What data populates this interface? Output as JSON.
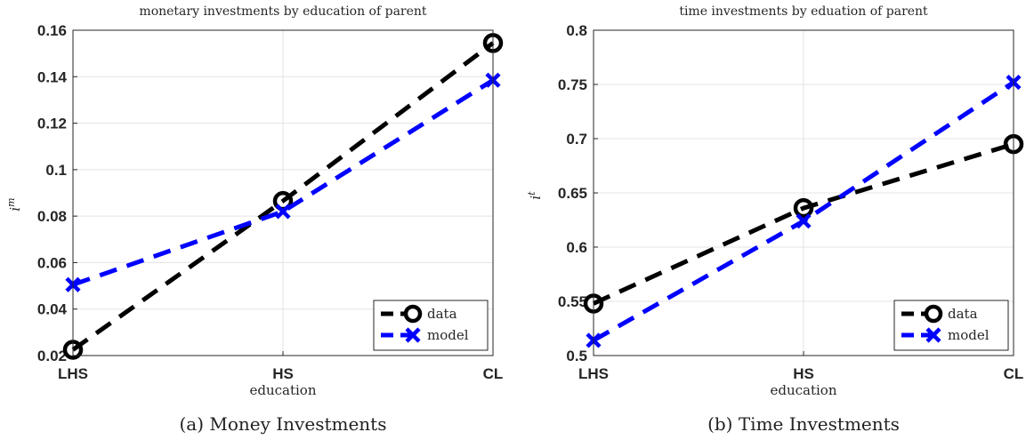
{
  "captions": [
    "(a) Money Investments",
    "(b) Time Investments"
  ],
  "chart_data": [
    {
      "type": "line",
      "title": "monetary investments by education of parent",
      "xlabel": "education",
      "ylabel": "i",
      "ylabel_superscript": "m",
      "categories": [
        "LHS",
        "HS",
        "CL"
      ],
      "ylim": [
        0.02,
        0.16
      ],
      "yticks": [
        "0.02",
        "0.04",
        "0.06",
        "0.08",
        "0.1",
        "0.12",
        "0.14",
        "0.16"
      ],
      "grid": true,
      "legend_position": "bottom-right",
      "series": [
        {
          "name": "data",
          "values": [
            0.0225,
            0.0865,
            0.1545
          ],
          "color": "#000000",
          "marker": "circle"
        },
        {
          "name": "model",
          "values": [
            0.0505,
            0.082,
            0.1385
          ],
          "color": "#0000ff",
          "marker": "x"
        }
      ]
    },
    {
      "type": "line",
      "title": "time investments by eduation of parent",
      "xlabel": "education",
      "ylabel": "i",
      "ylabel_superscript": "t",
      "categories": [
        "LHS",
        "HS",
        "CL"
      ],
      "ylim": [
        0.5,
        0.8
      ],
      "yticks": [
        "0.5",
        "0.55",
        "0.6",
        "0.65",
        "0.7",
        "0.75",
        "0.8"
      ],
      "grid": true,
      "legend_position": "bottom-right",
      "series": [
        {
          "name": "data",
          "values": [
            0.548,
            0.636,
            0.695
          ],
          "color": "#000000",
          "marker": "circle"
        },
        {
          "name": "model",
          "values": [
            0.514,
            0.624,
            0.752
          ],
          "color": "#0000ff",
          "marker": "x"
        }
      ]
    }
  ]
}
